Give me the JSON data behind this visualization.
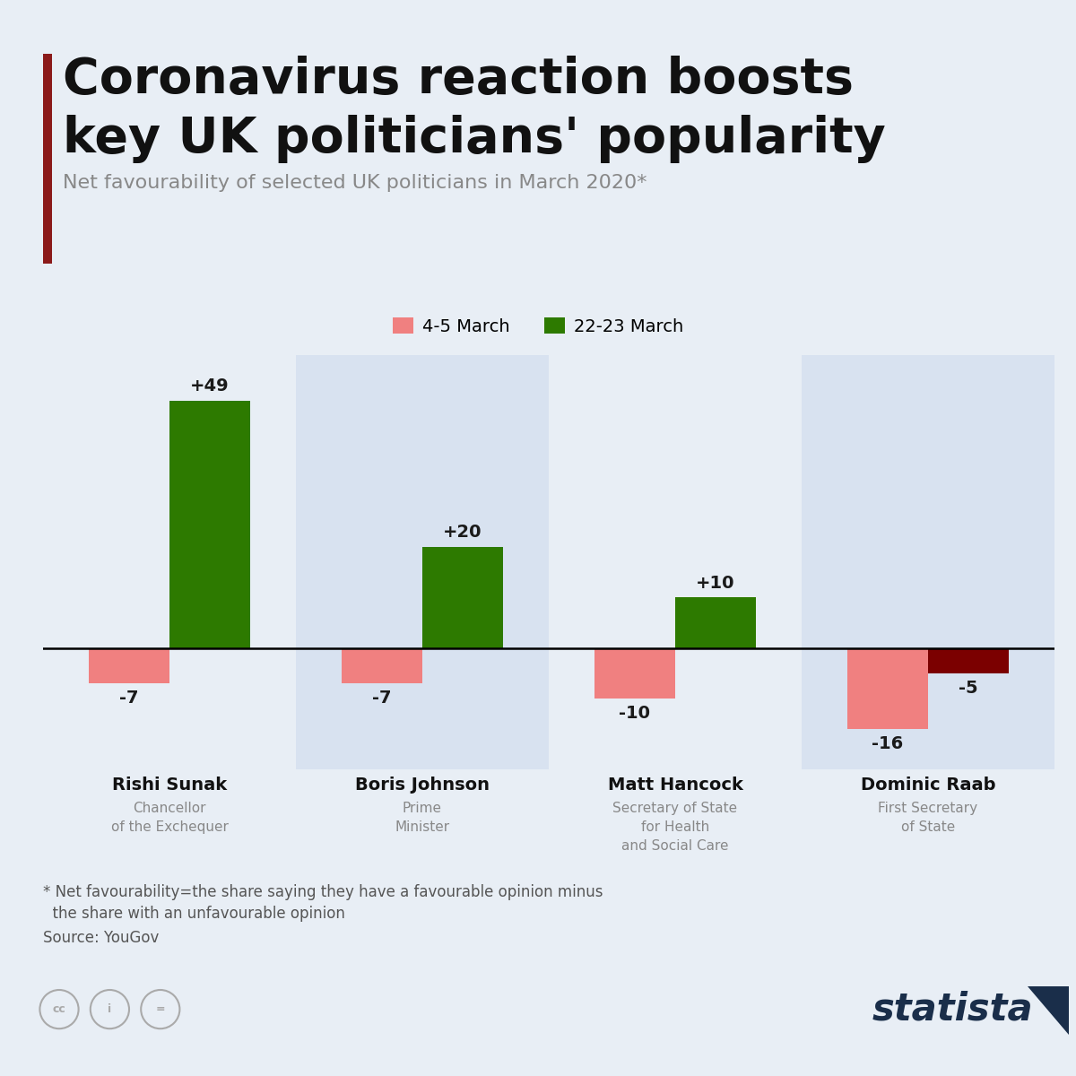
{
  "title_line1": "Coronavirus reaction boosts",
  "title_line2": "key UK politicians' popularity",
  "subtitle": "Net favourability of selected UK politicians in March 2020*",
  "politicians": [
    "Rishi Sunak",
    "Boris Johnson",
    "Matt Hancock",
    "Dominic Raab"
  ],
  "subtitles": [
    "Chancellor\nof the Exchequer",
    "Prime\nMinister",
    "Secretary of State\nfor Health\nand Social Care",
    "First Secretary\nof State"
  ],
  "early_march": [
    -7,
    -7,
    -10,
    -16
  ],
  "late_march": [
    49,
    20,
    10,
    -5
  ],
  "early_march_color": "#F08080",
  "late_march_pos_color": "#2D7A00",
  "late_march_neg_color": "#7B0000",
  "bg_color": "#E8EEF5",
  "panel_colors_odd": "#E8EEF5",
  "panel_colors_even": "#D8E2F0",
  "footnote_line1": "* Net favourability=the share saying they have a favourable opinion minus",
  "footnote_line2": "  the share with an unfavourable opinion",
  "source": "Source: YouGov",
  "accent_color": "#8B1A1A",
  "title_color": "#111111",
  "subtitle_color": "#888888",
  "legend_label1": "4-5 March",
  "legend_label2": "22-23 March"
}
